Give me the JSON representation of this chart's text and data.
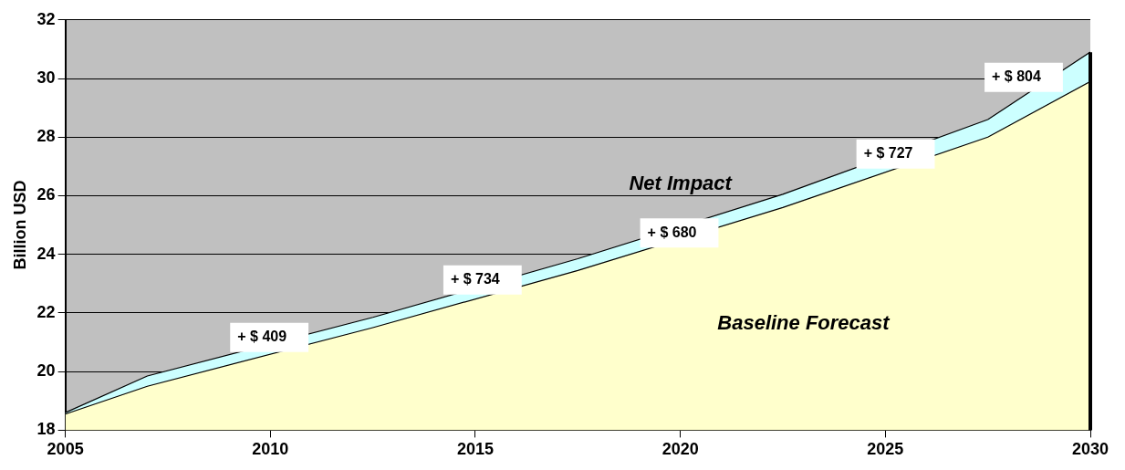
{
  "chart_data": {
    "type": "area",
    "ylabel": "Billion USD",
    "x": [
      2005,
      2007,
      2012.5,
      2017.5,
      2022.5,
      2027.5,
      2030
    ],
    "series": [
      {
        "name": "Baseline Forecast",
        "color": "#ffffcc",
        "values": [
          18.55,
          19.5,
          21.5,
          23.45,
          25.6,
          28.0,
          29.9
        ]
      },
      {
        "name": "Net Impact",
        "color": "#ccffff",
        "values": [
          18.6,
          19.85,
          21.85,
          23.85,
          26.05,
          28.6,
          30.9
        ]
      }
    ],
    "xlim": [
      2005,
      2030
    ],
    "xticks": [
      2005,
      2010,
      2015,
      2020,
      2025,
      2030
    ],
    "ylim": [
      18,
      32
    ],
    "yticks": [
      18,
      20,
      22,
      24,
      26,
      28,
      30,
      32
    ],
    "grid": "y",
    "legend": false,
    "annotations": [
      "+ $ 409",
      "+ $ 734",
      "+ $ 680",
      "+ $ 727",
      "+ $ 804"
    ]
  }
}
